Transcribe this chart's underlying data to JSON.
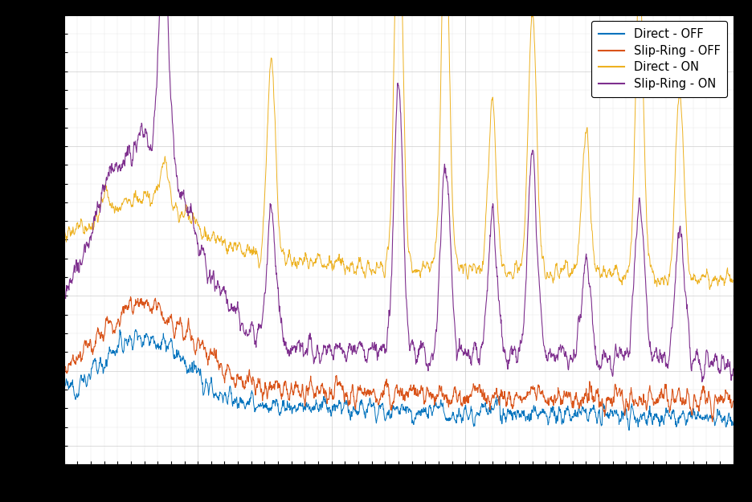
{
  "title": "",
  "xlabel": "",
  "ylabel": "",
  "legend_labels": [
    "Direct - OFF",
    "Slip-Ring - OFF",
    "Direct - ON",
    "Slip-Ring - ON"
  ],
  "line_colors": [
    "#0072bd",
    "#d95319",
    "#edb120",
    "#7e2f8e"
  ],
  "background_color": "#ffffff",
  "outer_color": "#000000",
  "grid_color": "#cccccc",
  "n_points": 2000,
  "seed": 12345
}
